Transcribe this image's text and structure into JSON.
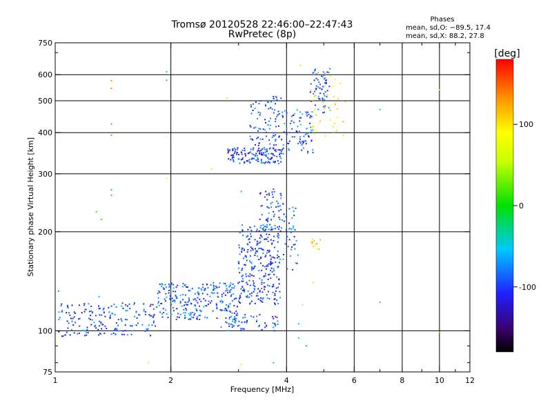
{
  "chart_data": {
    "type": "scatter",
    "title": "Tromsø 20120528 22:46:00–22:47:43",
    "subtitle": "RwPretec (8p)",
    "xlabel": "Frequency [MHz]",
    "ylabel": "Stationary phase Virtual Height [km]",
    "x_scale": "log",
    "y_scale": "log",
    "xlim": [
      1,
      12
    ],
    "ylim": [
      75,
      750
    ],
    "x_ticks": [
      1,
      2,
      4,
      6,
      8,
      10,
      12
    ],
    "y_ticks": [
      75,
      100,
      200,
      300,
      400,
      500,
      600,
      750
    ],
    "grid": true,
    "phase_stats": {
      "heading": "Phases",
      "line1": "mean, sd,O: −89.5, 17.4",
      "line2": "mean, sd,X:  88.2, 27.8"
    },
    "colorbar": {
      "label": "[deg]",
      "min": -180,
      "max": 180,
      "ticks": [
        100,
        0,
        -100
      ]
    },
    "point_groups": [
      {
        "x_range": [
          1.02,
          1.85
        ],
        "y_range": [
          96,
          122
        ],
        "phase": -95,
        "count": 180
      },
      {
        "x_range": [
          1.85,
          3.0
        ],
        "y_range": [
          108,
          140
        ],
        "phase": -90,
        "count": 260
      },
      {
        "x_range": [
          3.0,
          3.85
        ],
        "y_range": [
          120,
          210
        ],
        "phase": -100,
        "count": 280
      },
      {
        "x_range": [
          3.4,
          3.9
        ],
        "y_range": [
          200,
          270
        ],
        "phase": -95,
        "count": 60
      },
      {
        "x_range": [
          2.7,
          3.8
        ],
        "y_range": [
          100,
          112
        ],
        "phase": -90,
        "count": 60
      },
      {
        "x_range": [
          3.9,
          4.3
        ],
        "y_range": [
          150,
          260
        ],
        "phase": -90,
        "count": 40
      },
      {
        "x_range": [
          2.8,
          3.9
        ],
        "y_range": [
          322,
          360
        ],
        "phase": -100,
        "count": 140
      },
      {
        "x_range": [
          3.2,
          3.9
        ],
        "y_range": [
          350,
          520
        ],
        "phase": -100,
        "count": 90
      },
      {
        "x_range": [
          3.9,
          4.7
        ],
        "y_range": [
          345,
          470
        ],
        "phase": -90,
        "count": 80
      },
      {
        "x_range": [
          4.6,
          5.2
        ],
        "y_range": [
          460,
          630
        ],
        "phase": -95,
        "count": 60
      },
      {
        "x_range": [
          4.6,
          5.7
        ],
        "y_range": [
          390,
          610
        ],
        "phase": 90,
        "count": 40
      },
      {
        "x_range": [
          4.6,
          4.9
        ],
        "y_range": [
          175,
          190
        ],
        "phase": 110,
        "count": 12
      }
    ],
    "outliers": [
      {
        "x": 1.4,
        "y": 575,
        "phase": 130
      },
      {
        "x": 1.4,
        "y": 545,
        "phase": 140
      },
      {
        "x": 1.4,
        "y": 425,
        "phase": 140
      },
      {
        "x": 1.4,
        "y": 393,
        "phase": 140
      },
      {
        "x": 1.4,
        "y": 268,
        "phase": -60
      },
      {
        "x": 1.4,
        "y": 258,
        "phase": 140
      },
      {
        "x": 1.28,
        "y": 230,
        "phase": 20
      },
      {
        "x": 1.32,
        "y": 218,
        "phase": 20
      },
      {
        "x": 1.02,
        "y": 132,
        "phase": -70
      },
      {
        "x": 1.3,
        "y": 127,
        "phase": -60
      },
      {
        "x": 1.95,
        "y": 612,
        "phase": -40
      },
      {
        "x": 1.95,
        "y": 577,
        "phase": -40
      },
      {
        "x": 1.95,
        "y": 290,
        "phase": 80
      },
      {
        "x": 1.75,
        "y": 80,
        "phase": 100
      },
      {
        "x": 2.55,
        "y": 310,
        "phase": 100
      },
      {
        "x": 2.8,
        "y": 510,
        "phase": 100
      },
      {
        "x": 3.05,
        "y": 265,
        "phase": -50
      },
      {
        "x": 3.05,
        "y": 79,
        "phase": 100
      },
      {
        "x": 3.7,
        "y": 80,
        "phase": -60
      },
      {
        "x": 4.3,
        "y": 95,
        "phase": -50
      },
      {
        "x": 4.3,
        "y": 105,
        "phase": -60
      },
      {
        "x": 4.5,
        "y": 90,
        "phase": -70
      },
      {
        "x": 4.4,
        "y": 120,
        "phase": 60
      },
      {
        "x": 4.7,
        "y": 140,
        "phase": 100
      },
      {
        "x": 4.35,
        "y": 640,
        "phase": 100
      },
      {
        "x": 7.0,
        "y": 470,
        "phase": -40
      },
      {
        "x": 7.0,
        "y": 122,
        "phase": -40
      },
      {
        "x": 10.0,
        "y": 540,
        "phase": 100
      },
      {
        "x": 10.0,
        "y": 99,
        "phase": 30
      }
    ]
  }
}
